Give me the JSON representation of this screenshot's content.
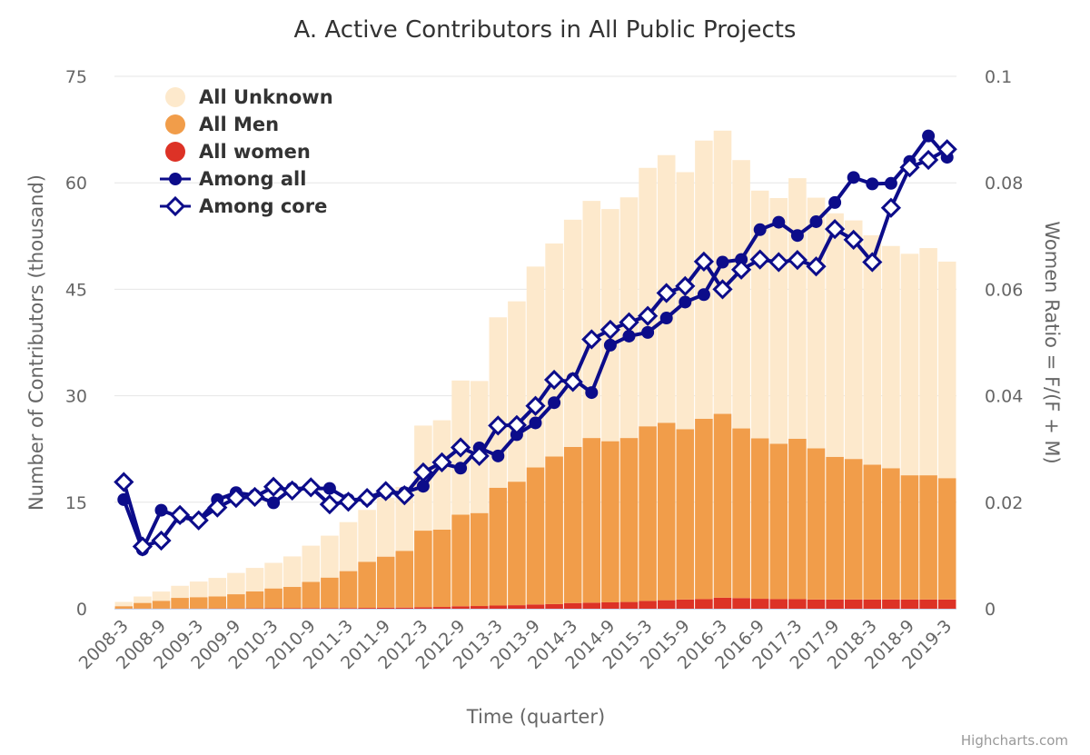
{
  "colors": {
    "unknown": "#fde9cc",
    "men": "#f19d4a",
    "women": "#dd3226",
    "among_all": "#0c0c8a",
    "among_core": "#0c0c8a",
    "grid": "#e6e6e6"
  },
  "chart_data": {
    "type": "bar",
    "title": "A. Active Contributors in All Public Projects",
    "xlabel": "Time (quarter)",
    "ylabel": "Number of Contributors (thousand)",
    "ylabel_right": "Women Ratio = F/(F + M)",
    "credit": "Highcharts.com",
    "ylim": [
      0,
      75
    ],
    "ylim_right": [
      0,
      0.1
    ],
    "yticks": [
      "0",
      "15",
      "30",
      "45",
      "60",
      "75"
    ],
    "yticks_right": [
      "0",
      "0.02",
      "0.04",
      "0.06",
      "0.08",
      "0.1"
    ],
    "grid": true,
    "legend_position": "top-left",
    "categories": [
      "2008-3",
      "2008-6",
      "2008-9",
      "2008-12",
      "2009-3",
      "2009-6",
      "2009-9",
      "2009-12",
      "2010-3",
      "2010-6",
      "2010-9",
      "2010-12",
      "2011-3",
      "2011-6",
      "2011-9",
      "2011-12",
      "2012-3",
      "2012-6",
      "2012-9",
      "2012-12",
      "2013-3",
      "2013-6",
      "2013-9",
      "2013-12",
      "2014-3",
      "2014-6",
      "2014-9",
      "2014-12",
      "2015-3",
      "2015-6",
      "2015-9",
      "2015-12",
      "2016-3",
      "2016-6",
      "2016-9",
      "2016-12",
      "2017-3",
      "2017-6",
      "2017-9",
      "2017-12",
      "2018-3",
      "2018-6",
      "2018-9",
      "2018-12",
      "2019-3"
    ],
    "tick_labels": [
      "2008-3",
      "2008-9",
      "2009-3",
      "2009-9",
      "2010-3",
      "2010-9",
      "2011-3",
      "2011-9",
      "2012-3",
      "2012-9",
      "2013-3",
      "2013-9",
      "2014-3",
      "2014-9",
      "2015-3",
      "2015-9",
      "2016-3",
      "2016-9",
      "2017-3",
      "2017-9",
      "2018-3",
      "2018-9",
      "2019-3"
    ],
    "series": [
      {
        "name": "All Unknown",
        "kind": "column",
        "values": [
          0.6,
          0.9,
          1.3,
          1.7,
          2.2,
          2.6,
          3.0,
          3.3,
          3.6,
          4.3,
          5.1,
          5.9,
          6.9,
          7.3,
          8.3,
          9.0,
          14.8,
          15.4,
          18.9,
          18.6,
          24.0,
          25.4,
          28.3,
          30.0,
          32.0,
          33.4,
          32.7,
          33.9,
          36.4,
          37.7,
          36.2,
          39.2,
          39.9,
          37.8,
          34.9,
          34.6,
          36.7,
          35.3,
          34.3,
          33.6,
          32.3,
          31.3,
          31.2,
          32.0,
          30.5
        ]
      },
      {
        "name": "All Men",
        "kind": "column",
        "values": [
          0.35,
          0.8,
          1.1,
          1.5,
          1.6,
          1.7,
          2.0,
          2.4,
          2.8,
          3.0,
          3.7,
          4.3,
          5.2,
          6.5,
          7.2,
          8.0,
          10.8,
          10.9,
          12.9,
          13.1,
          16.6,
          17.4,
          19.3,
          20.8,
          22.0,
          23.2,
          22.7,
          23.1,
          24.6,
          25.0,
          24.0,
          25.4,
          25.9,
          23.9,
          22.6,
          21.9,
          22.6,
          21.3,
          20.1,
          19.8,
          19.0,
          18.5,
          17.5,
          17.5,
          17.1
        ]
      },
      {
        "name": "All women",
        "kind": "column",
        "values": [
          0.01,
          0.02,
          0.02,
          0.03,
          0.03,
          0.04,
          0.04,
          0.05,
          0.06,
          0.07,
          0.08,
          0.09,
          0.1,
          0.12,
          0.14,
          0.16,
          0.2,
          0.25,
          0.35,
          0.38,
          0.45,
          0.5,
          0.6,
          0.65,
          0.8,
          0.85,
          0.9,
          0.95,
          1.1,
          1.2,
          1.3,
          1.35,
          1.55,
          1.5,
          1.4,
          1.35,
          1.35,
          1.3,
          1.3,
          1.3,
          1.3,
          1.3,
          1.3,
          1.3,
          1.3
        ]
      },
      {
        "name": "Among all",
        "kind": "line",
        "axis": "right",
        "values": [
          0.0205,
          0.0111,
          0.0185,
          0.0172,
          0.0166,
          0.0205,
          0.0218,
          0.0213,
          0.0199,
          0.0226,
          0.0226,
          0.0226,
          0.0205,
          0.0205,
          0.0218,
          0.0218,
          0.023,
          0.0273,
          0.0264,
          0.0302,
          0.0287,
          0.0327,
          0.0349,
          0.0387,
          0.0432,
          0.0406,
          0.0495,
          0.0512,
          0.0519,
          0.0546,
          0.0576,
          0.059,
          0.0651,
          0.0656,
          0.0712,
          0.0726,
          0.0701,
          0.0727,
          0.0763,
          0.081,
          0.0798,
          0.0799,
          0.084,
          0.0888,
          0.0848
        ]
      },
      {
        "name": "Among core",
        "kind": "line",
        "axis": "right",
        "marker": "diamond",
        "values": [
          0.0238,
          0.0117,
          0.0128,
          0.0176,
          0.0166,
          0.019,
          0.0208,
          0.021,
          0.0229,
          0.0222,
          0.0228,
          0.0196,
          0.0201,
          0.0208,
          0.0221,
          0.0213,
          0.0256,
          0.0275,
          0.0303,
          0.0287,
          0.0344,
          0.0345,
          0.0381,
          0.043,
          0.0426,
          0.0506,
          0.0524,
          0.0538,
          0.055,
          0.0593,
          0.0606,
          0.0652,
          0.06,
          0.0637,
          0.0656,
          0.0651,
          0.0655,
          0.0643,
          0.0713,
          0.0693,
          0.0651,
          0.0753,
          0.0829,
          0.0843,
          0.0863
        ]
      }
    ],
    "legend": [
      "All Unknown",
      "All Men",
      "All women",
      "Among all",
      "Among core"
    ]
  }
}
